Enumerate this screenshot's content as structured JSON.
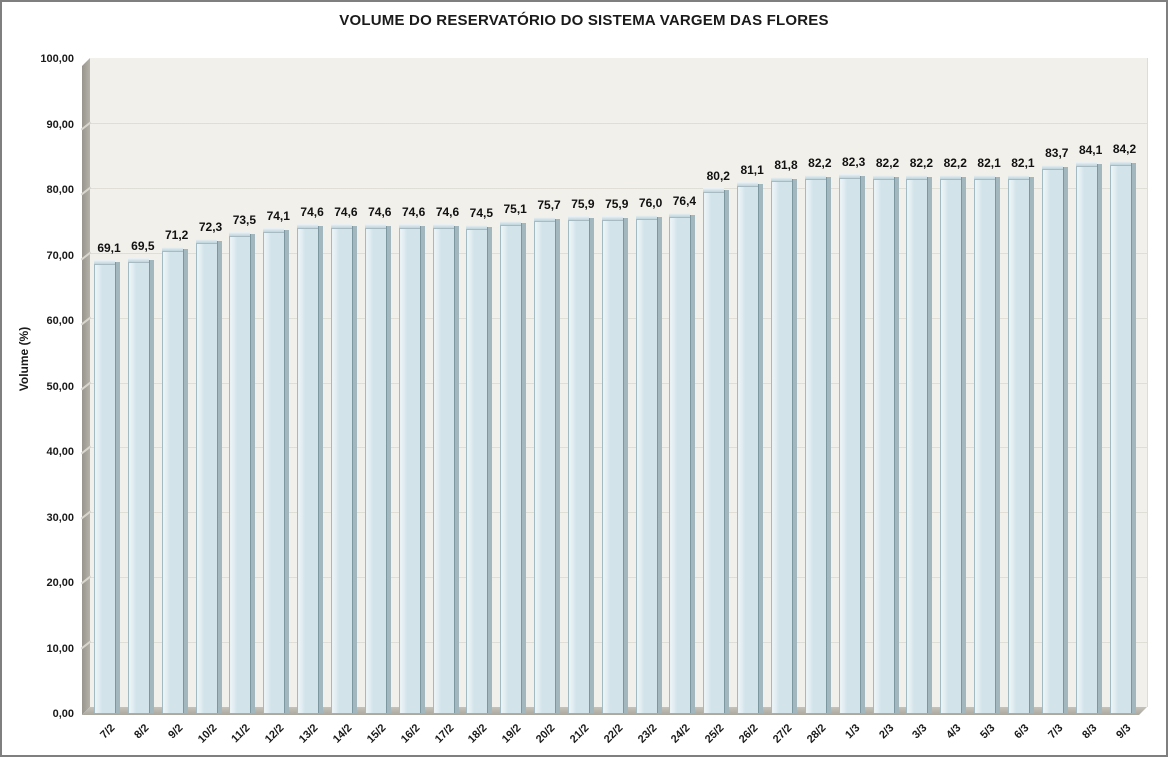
{
  "chart_data": {
    "type": "bar",
    "title": "VOLUME DO RESERVATÓRIO DO SISTEMA VARGEM DAS FLORES",
    "xlabel": "",
    "ylabel": "Volume (%)",
    "ylim": [
      0,
      100
    ],
    "ytick_step": 10,
    "ytick_labels": [
      "0,00",
      "10,00",
      "20,00",
      "30,00",
      "40,00",
      "50,00",
      "60,00",
      "70,00",
      "80,00",
      "90,00",
      "100,00"
    ],
    "grid": true,
    "legend": false,
    "style_3d": true,
    "categories": [
      "7/2",
      "8/2",
      "9/2",
      "10/2",
      "11/2",
      "12/2",
      "13/2",
      "14/2",
      "15/2",
      "16/2",
      "17/2",
      "18/2",
      "19/2",
      "20/2",
      "21/2",
      "22/2",
      "23/2",
      "24/2",
      "25/2",
      "26/2",
      "27/2",
      "28/2",
      "1/3",
      "2/3",
      "3/3",
      "4/3",
      "5/3",
      "6/3",
      "7/3",
      "8/3",
      "9/3"
    ],
    "values": [
      69.1,
      69.5,
      71.2,
      72.3,
      73.5,
      74.1,
      74.6,
      74.6,
      74.6,
      74.6,
      74.6,
      74.5,
      75.1,
      75.7,
      75.9,
      75.9,
      76.0,
      76.4,
      80.2,
      81.1,
      81.8,
      82.2,
      82.3,
      82.2,
      82.2,
      82.2,
      82.1,
      82.1,
      83.7,
      84.1,
      84.2
    ],
    "data_labels": [
      "69,1",
      "69,5",
      "71,2",
      "72,3",
      "73,5",
      "74,1",
      "74,6",
      "74,6",
      "74,6",
      "74,6",
      "74,6",
      "74,5",
      "75,1",
      "75,7",
      "75,9",
      "75,9",
      "76,0",
      "76,4",
      "80,2",
      "81,1",
      "81,8",
      "82,2",
      "82,3",
      "82,2",
      "82,2",
      "82,2",
      "82,1",
      "82,1",
      "83,7",
      "84,1",
      "84,2"
    ],
    "colors": {
      "bar_fill": "#d2e4ea",
      "bar_side": "#a3b7be",
      "bar_edge": "#7d97a1",
      "bar_highlight": "#e9f2f5",
      "wall_fill": "#f2f0ea",
      "axis_3d_gray": "#aaa79e",
      "gridline": "#d6d4cc",
      "text_color": "#1a1a1a",
      "frame_border": "#7f7f7f"
    }
  }
}
